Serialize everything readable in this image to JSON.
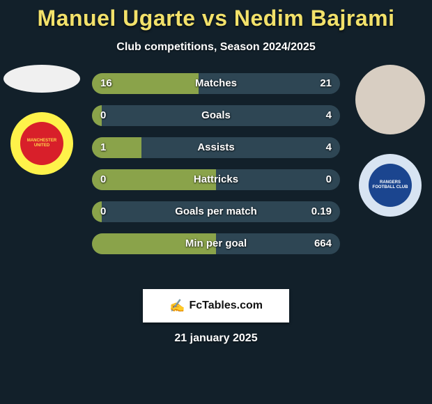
{
  "header": {
    "title": "Manuel Ugarte vs Nedim Bajrami",
    "subtitle": "Club competitions, Season 2024/2025"
  },
  "colors": {
    "title": "#f2e16a",
    "bar_left_fill": "#8aa34a",
    "bar_right_bg": "#2e4654",
    "bar_base": "#2e4654"
  },
  "left": {
    "player": "Manuel Ugarte",
    "club_name": "Manchester United",
    "club_badge_bg": "#fef24a",
    "club_badge_inner": "#d81f2a",
    "club_badge_text": "MANCHESTER UNITED"
  },
  "right": {
    "player": "Nedim Bajrami",
    "avatar_bg": "#d8cec2",
    "club_name": "Rangers",
    "club_badge_bg": "#d8e4f2",
    "club_badge_inner": "#1b458f",
    "club_badge_text": "RANGERS FOOTBALL CLUB"
  },
  "bars": [
    {
      "label": "Matches",
      "left": "16",
      "right": "21",
      "left_pct": 43
    },
    {
      "label": "Goals",
      "left": "0",
      "right": "4",
      "left_pct": 4
    },
    {
      "label": "Assists",
      "left": "1",
      "right": "4",
      "left_pct": 20
    },
    {
      "label": "Hattricks",
      "left": "0",
      "right": "0",
      "left_pct": 50
    },
    {
      "label": "Goals per match",
      "left": "0",
      "right": "0.19",
      "left_pct": 4
    },
    {
      "label": "Min per goal",
      "left": "",
      "right": "664",
      "left_pct": 50
    }
  ],
  "footer": {
    "brand": "FcTables.com",
    "date": "21 january 2025"
  }
}
